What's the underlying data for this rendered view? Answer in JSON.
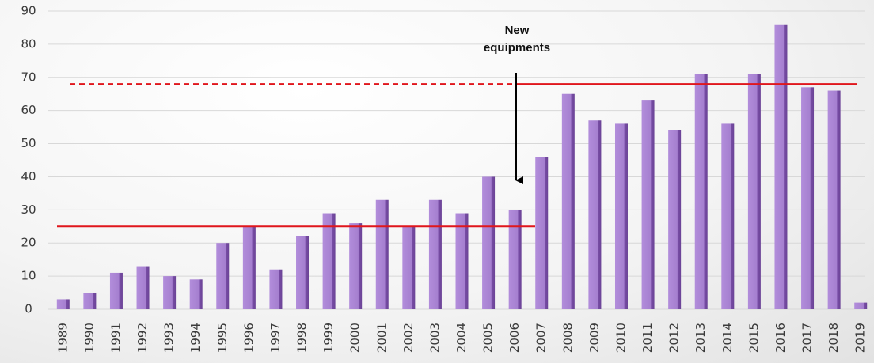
{
  "chart_data": {
    "type": "bar",
    "categories": [
      "1989",
      "1990",
      "1991",
      "1992",
      "1993",
      "1994",
      "1995",
      "1996",
      "1997",
      "1998",
      "1999",
      "2000",
      "2001",
      "2002",
      "2003",
      "2004",
      "2005",
      "2006",
      "2007",
      "2008",
      "2009",
      "2010",
      "2011",
      "2012",
      "2013",
      "2014",
      "2015",
      "2016",
      "2017",
      "2018",
      "2019"
    ],
    "values": [
      3,
      5,
      11,
      13,
      10,
      9,
      20,
      25,
      12,
      22,
      29,
      26,
      33,
      25,
      33,
      29,
      40,
      30,
      46,
      65,
      57,
      56,
      63,
      54,
      71,
      56,
      71,
      86,
      67,
      66,
      2
    ],
    "color": "#a57fcf",
    "ylim": [
      0,
      90
    ],
    "yticks": [
      0,
      10,
      20,
      30,
      40,
      50,
      60,
      70,
      80,
      90
    ],
    "grid": true,
    "annotation": "New equipments",
    "reference_lines": [
      {
        "value": 25,
        "style": "solid",
        "color": "#e0161c"
      },
      {
        "value": 68,
        "style": "dashed",
        "color": "#e0161c"
      },
      {
        "value": 68,
        "style": "solid",
        "color": "#e0161c"
      }
    ]
  }
}
